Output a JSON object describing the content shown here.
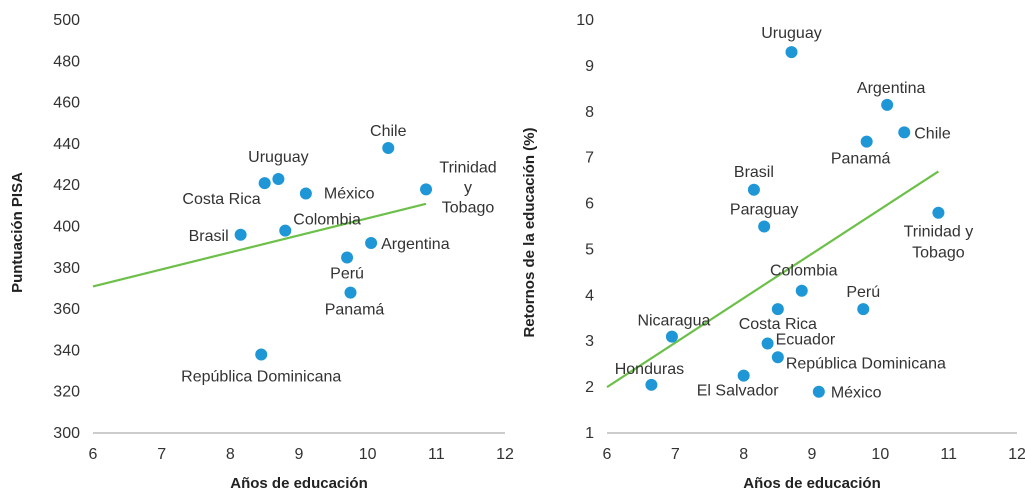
{
  "colors": {
    "point": "#1f96d6",
    "trend": "#6cc04a",
    "axis": "#999999"
  },
  "chart_data": [
    {
      "type": "scatter",
      "xlabel": "Años de educación",
      "ylabel": "Puntuación PISA",
      "xlim": [
        6,
        12
      ],
      "ylim": [
        300,
        500
      ],
      "xticks": [
        "6",
        "7",
        "8",
        "9",
        "10",
        "11",
        "12"
      ],
      "yticks": [
        "300",
        "320",
        "340",
        "360",
        "380",
        "400",
        "420",
        "440",
        "460",
        "480",
        "500"
      ],
      "points": [
        {
          "label": "Chile",
          "x": 10.3,
          "y": 438
        },
        {
          "label": "Uruguay",
          "x": 8.7,
          "y": 423
        },
        {
          "label": "Costa Rica",
          "x": 8.5,
          "y": 421
        },
        {
          "label": "México",
          "x": 9.1,
          "y": 416
        },
        {
          "label": "Trinidad y Tobago",
          "x": 10.85,
          "y": 418
        },
        {
          "label": "Brasil",
          "x": 8.15,
          "y": 396
        },
        {
          "label": "Colombia",
          "x": 8.8,
          "y": 398
        },
        {
          "label": "Argentina",
          "x": 10.05,
          "y": 392
        },
        {
          "label": "Perú",
          "x": 9.7,
          "y": 385
        },
        {
          "label": "Panamá",
          "x": 9.75,
          "y": 368
        },
        {
          "label": "República Dominicana",
          "x": 8.45,
          "y": 338
        }
      ],
      "trendline": {
        "x": [
          6,
          10.85
        ],
        "y": [
          371,
          411
        ]
      }
    },
    {
      "type": "scatter",
      "xlabel": "Años de educación",
      "ylabel": "Retornos de la educación (%)",
      "xlim": [
        6,
        12
      ],
      "ylim": [
        1,
        10
      ],
      "xticks": [
        "6",
        "7",
        "8",
        "9",
        "10",
        "11",
        "12"
      ],
      "yticks": [
        "1",
        "2",
        "3",
        "4",
        "5",
        "6",
        "7",
        "8",
        "9",
        "10"
      ],
      "points": [
        {
          "label": "Uruguay",
          "x": 8.7,
          "y": 9.3
        },
        {
          "label": "Argentina",
          "x": 10.1,
          "y": 8.15
        },
        {
          "label": "Chile",
          "x": 10.35,
          "y": 7.55
        },
        {
          "label": "Panamá",
          "x": 9.8,
          "y": 7.35
        },
        {
          "label": "Brasil",
          "x": 8.15,
          "y": 6.3
        },
        {
          "label": "Paraguay",
          "x": 8.3,
          "y": 5.5
        },
        {
          "label": "Trinidad y Tobago",
          "x": 10.85,
          "y": 5.8
        },
        {
          "label": "Colombia",
          "x": 8.85,
          "y": 4.1
        },
        {
          "label": "Perú",
          "x": 9.75,
          "y": 3.7
        },
        {
          "label": "Costa Rica",
          "x": 8.5,
          "y": 3.7
        },
        {
          "label": "Nicaragua",
          "x": 6.95,
          "y": 3.1
        },
        {
          "label": "Ecuador",
          "x": 8.35,
          "y": 2.95
        },
        {
          "label": "República Dominicana",
          "x": 8.5,
          "y": 2.65
        },
        {
          "label": "Honduras",
          "x": 6.65,
          "y": 2.05
        },
        {
          "label": "El Salvador",
          "x": 8.0,
          "y": 2.25
        },
        {
          "label": "México",
          "x": 9.1,
          "y": 1.9
        }
      ],
      "trendline": {
        "x": [
          6,
          10.85
        ],
        "y": [
          2.0,
          6.7
        ]
      }
    }
  ]
}
